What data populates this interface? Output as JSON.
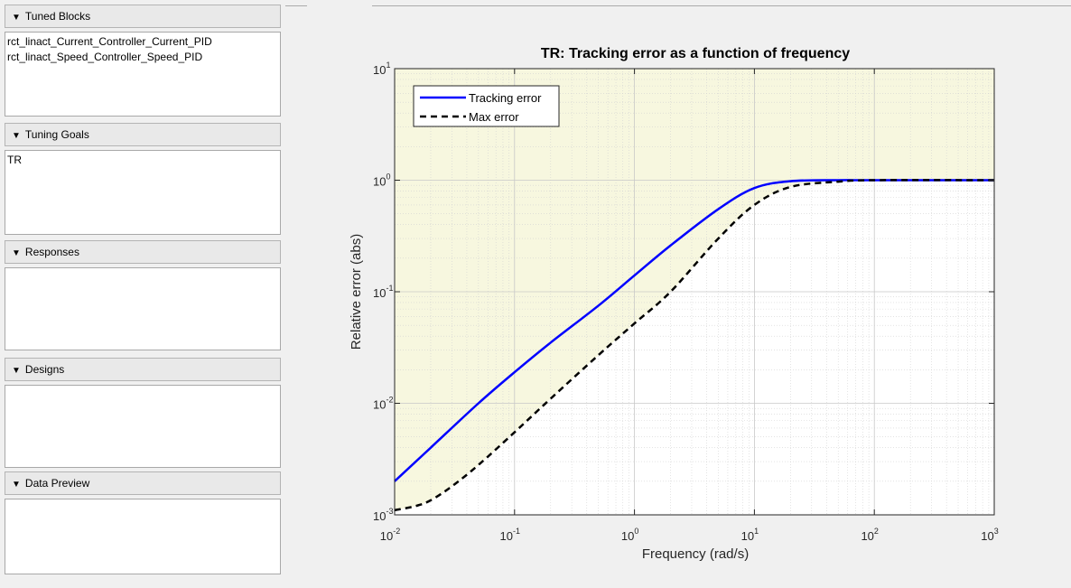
{
  "panels": {
    "tuned_blocks": {
      "title": "Tuned Blocks",
      "items": [
        "rct_linact_Current_Controller_Current_PID",
        "rct_linact_Speed_Controller_Speed_PID"
      ]
    },
    "tuning_goals": {
      "title": "Tuning Goals",
      "items": [
        "TR"
      ]
    },
    "responses": {
      "title": "Responses",
      "items": []
    },
    "designs": {
      "title": "Designs",
      "items": []
    },
    "data_preview": {
      "title": "Data Preview",
      "items": []
    }
  },
  "chart_data": {
    "type": "line",
    "title": "TR: Tracking error as a function of frequency",
    "xlabel": "Frequency (rad/s)",
    "ylabel": "Relative error (abs)",
    "xscale": "log",
    "yscale": "log",
    "xlim": [
      0.01,
      1000
    ],
    "ylim": [
      0.001,
      10
    ],
    "x_ticks": [
      0.01,
      0.1,
      1,
      10,
      100,
      1000
    ],
    "x_tick_labels": [
      [
        "10",
        "-2"
      ],
      [
        "10",
        "-1"
      ],
      [
        "10",
        "0"
      ],
      [
        "10",
        "1"
      ],
      [
        "10",
        "2"
      ],
      [
        "10",
        "3"
      ]
    ],
    "y_ticks": [
      0.001,
      0.01,
      0.1,
      1,
      10
    ],
    "y_tick_labels": [
      [
        "10",
        "-3"
      ],
      [
        "10",
        "-2"
      ],
      [
        "10",
        "-1"
      ],
      [
        "10",
        "0"
      ],
      [
        "10",
        "1"
      ]
    ],
    "grid": true,
    "shaded_region": "area above Max error curve",
    "shade_color": "#f7f7df",
    "legend_position": "top-left",
    "series": [
      {
        "name": "Tracking error",
        "color": "#0000ff",
        "style": "solid",
        "x": [
          0.01,
          0.02,
          0.05,
          0.1,
          0.2,
          0.5,
          1,
          2,
          5,
          10,
          20,
          50,
          100,
          1000
        ],
        "y": [
          0.002,
          0.004,
          0.01,
          0.019,
          0.035,
          0.075,
          0.14,
          0.26,
          0.55,
          0.85,
          0.98,
          1.0,
          1.0,
          1.0
        ]
      },
      {
        "name": "Max error",
        "color": "#000000",
        "style": "dashed",
        "x": [
          0.01,
          0.015,
          0.02,
          0.03,
          0.05,
          0.1,
          0.2,
          0.5,
          1,
          2,
          5,
          10,
          20,
          50,
          100,
          1000
        ],
        "y": [
          0.0011,
          0.0012,
          0.00135,
          0.0018,
          0.0028,
          0.0055,
          0.011,
          0.027,
          0.052,
          0.1,
          0.3,
          0.6,
          0.87,
          0.97,
          1.0,
          1.0
        ]
      }
    ]
  }
}
